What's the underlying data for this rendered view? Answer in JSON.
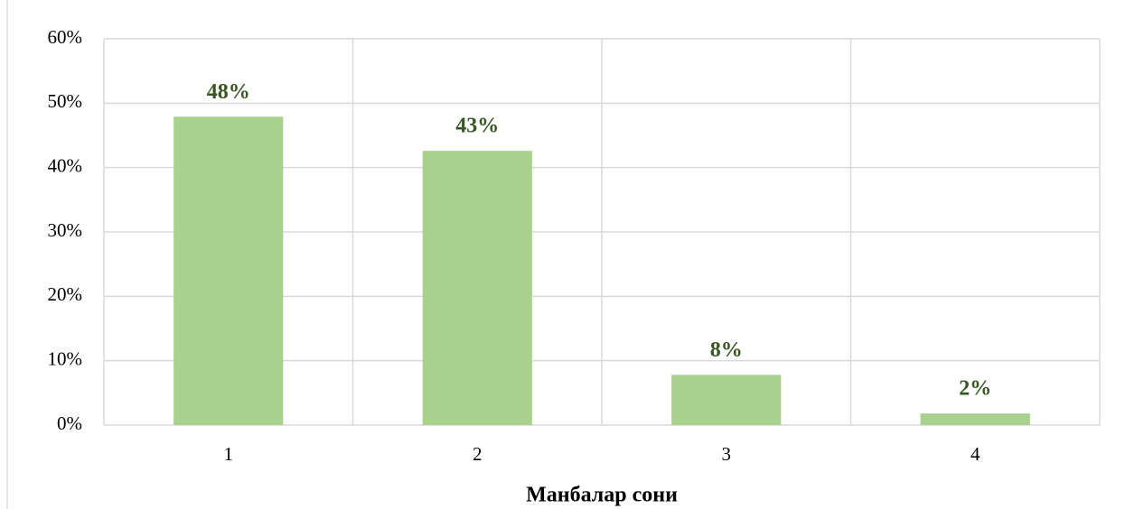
{
  "chart_data": {
    "type": "bar",
    "x_label": "Манбалар сони",
    "categories": [
      "1",
      "2",
      "3",
      "4"
    ],
    "values": [
      47.9,
      42.6,
      7.8,
      1.8
    ],
    "value_labels": [
      "48%",
      "43%",
      "8%",
      "2%"
    ],
    "color": "#a9d18e",
    "label_color": "#375623",
    "ylim": [
      0,
      60
    ],
    "yticks": [
      {
        "value": 0,
        "label": "0%"
      },
      {
        "value": 10,
        "label": "10%"
      },
      {
        "value": 20,
        "label": "20%"
      },
      {
        "value": 30,
        "label": "30%"
      },
      {
        "value": 40,
        "label": "40%"
      },
      {
        "value": 50,
        "label": "50%"
      },
      {
        "value": 60,
        "label": "60%"
      }
    ],
    "grid": true
  }
}
